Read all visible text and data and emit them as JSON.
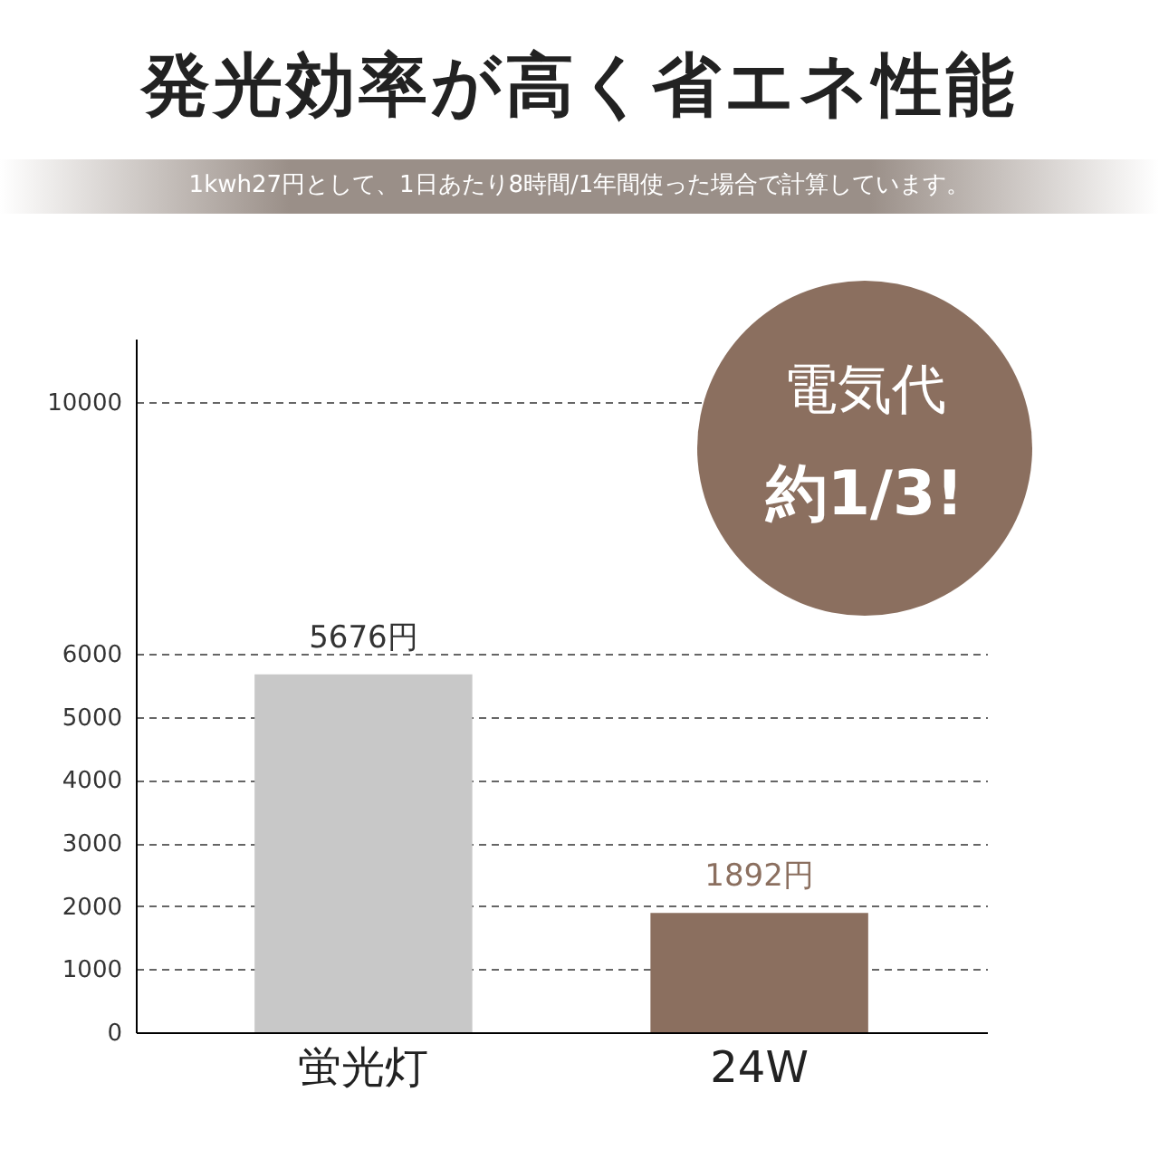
{
  "chart_data": {
    "type": "bar",
    "title": "発光効率が高く省エネ性能",
    "subtitle": "1kwh27円として、1日あたり8時間/1年間使った場合で計算しています。",
    "categories": [
      "蛍光灯",
      "24W"
    ],
    "values": [
      5676,
      1892
    ],
    "colors": [
      "#c8c8c8",
      "#8b6f5f"
    ],
    "value_labels": [
      "5676円",
      "1892円"
    ],
    "ylim": [
      0,
      11000
    ],
    "yticks": [
      0,
      1000,
      2000,
      3000,
      4000,
      5000,
      6000,
      10000
    ],
    "grid": "y",
    "annotations": [
      "電気代",
      "約1/3!"
    ]
  }
}
